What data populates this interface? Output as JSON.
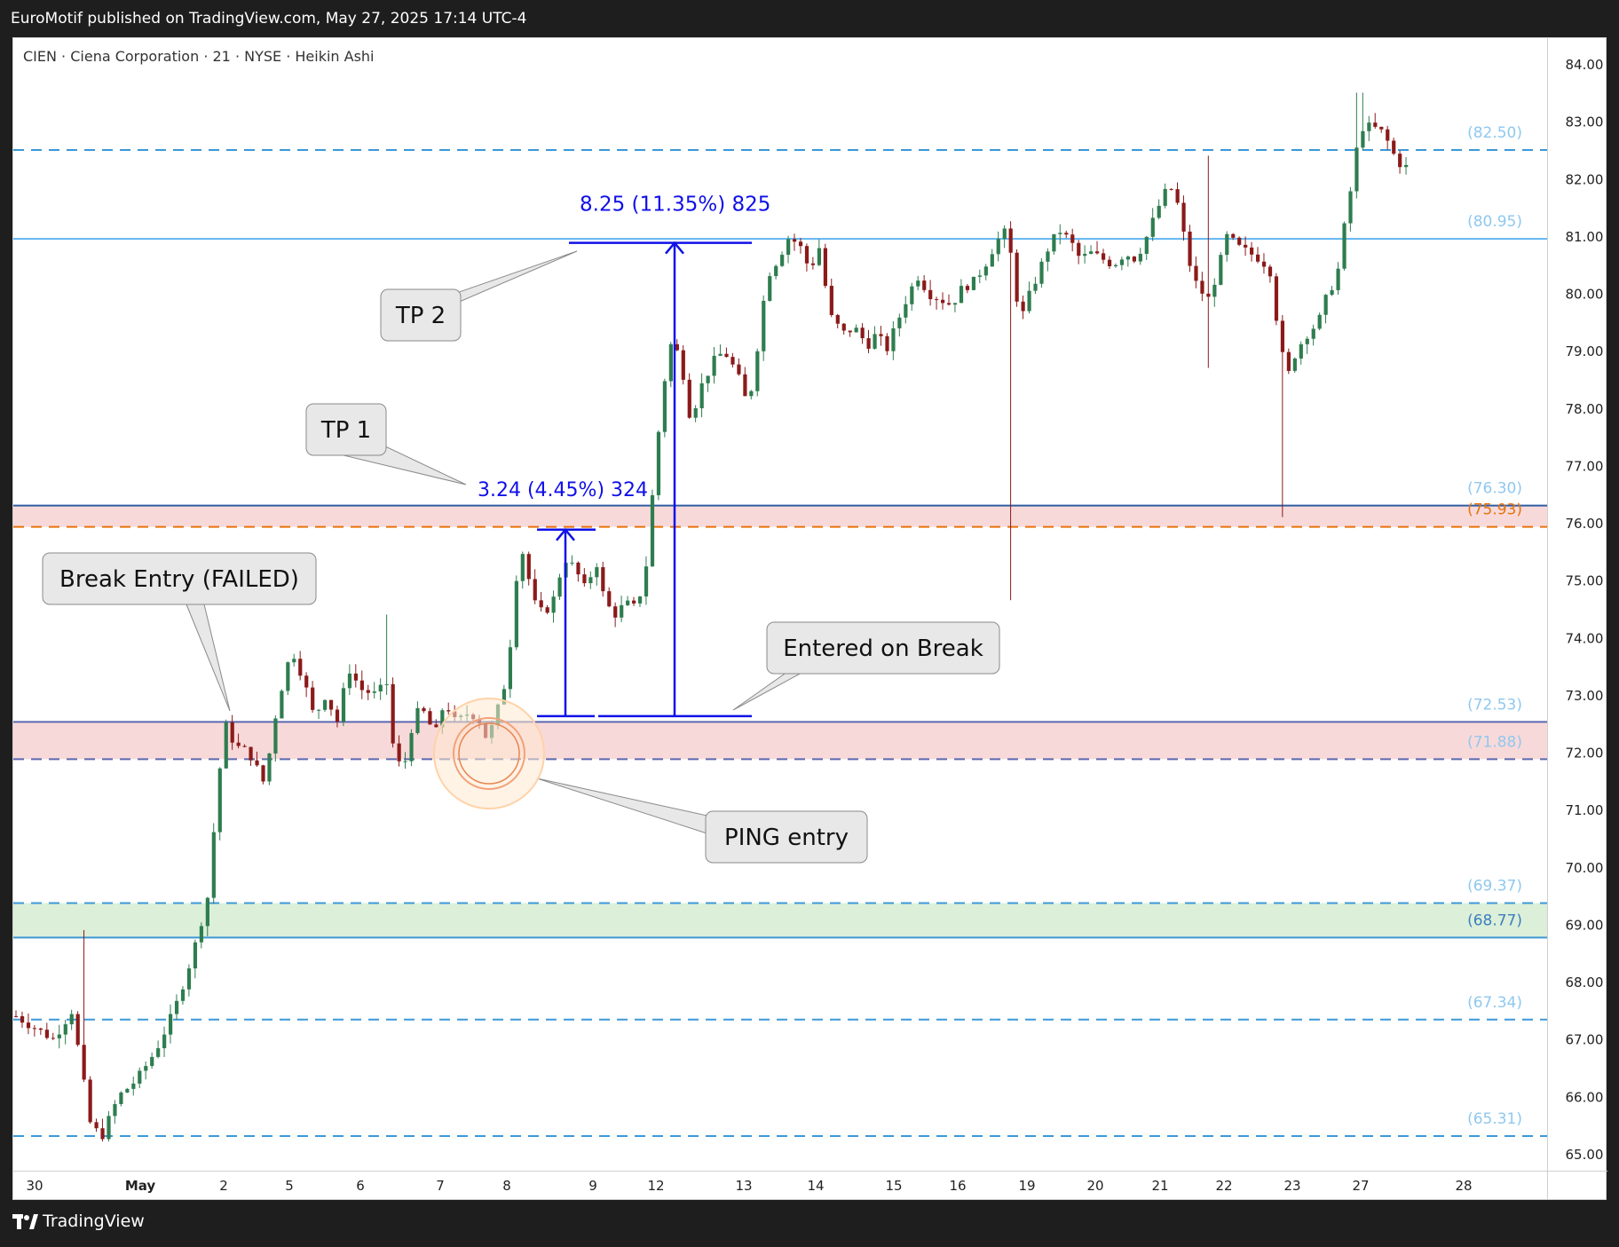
{
  "publish_line": "EuroMotif published on TradingView.com, May 27, 2025 17:14 UTC-4",
  "brand": "TradingView",
  "chart_data": {
    "type": "candlestick",
    "title": "CIEN · Ciena Corporation · 21 · NYSE · Heikin Ashi",
    "y_range": [
      64.9,
      84.55
    ],
    "y_ticks": [
      "84.00",
      "83.00",
      "82.00",
      "81.00",
      "80.00",
      "79.00",
      "78.00",
      "77.00",
      "76.00",
      "75.00",
      "74.00",
      "73.00",
      "72.00",
      "71.00",
      "70.00",
      "69.00",
      "68.00",
      "67.00",
      "66.00",
      "65.00"
    ],
    "x_ticks": [
      "30",
      "May",
      "2",
      "5",
      "6",
      "7",
      "8",
      "9",
      "12",
      "13",
      "14",
      "15",
      "16",
      "19",
      "20",
      "21",
      "22",
      "23",
      "27",
      "28"
    ],
    "series_path": [
      [
        0,
        67.4
      ],
      [
        2,
        67.0
      ],
      [
        3,
        67.5
      ],
      [
        4,
        65.5
      ],
      [
        4.6,
        65.3
      ],
      [
        5.5,
        66.0
      ],
      [
        6.5,
        66.3
      ],
      [
        7.5,
        66.8
      ],
      [
        8.5,
        67.5
      ],
      [
        9.5,
        68.5
      ],
      [
        10.3,
        69.5
      ],
      [
        10.8,
        71.3
      ],
      [
        11.2,
        72.5
      ],
      [
        11.8,
        72.1
      ],
      [
        12.5,
        72.0
      ],
      [
        13.4,
        71.4
      ],
      [
        13.7,
        72.3
      ],
      [
        14.3,
        73.2
      ],
      [
        14.8,
        73.8
      ],
      [
        15.4,
        73.3
      ],
      [
        16,
        72.6
      ],
      [
        16.6,
        73.0
      ],
      [
        17.3,
        72.5
      ],
      [
        17.8,
        73.5
      ],
      [
        18.5,
        73.1
      ],
      [
        19.3,
        73.0
      ],
      [
        19.9,
        73.2
      ],
      [
        20.3,
        71.9
      ],
      [
        20.8,
        71.7
      ],
      [
        21.2,
        72.4
      ],
      [
        21.7,
        72.8
      ],
      [
        22.5,
        72.3
      ],
      [
        23.0,
        72.9
      ],
      [
        23.6,
        72.5
      ],
      [
        24.3,
        72.7
      ],
      [
        24.8,
        72.6
      ],
      [
        25.3,
        72.2
      ],
      [
        25.9,
        72.8
      ],
      [
        26.4,
        73.4
      ],
      [
        26.8,
        75.0
      ],
      [
        27.2,
        75.5
      ],
      [
        27.8,
        74.6
      ],
      [
        28.3,
        74.4
      ],
      [
        28.9,
        74.7
      ],
      [
        29.4,
        75.4
      ],
      [
        30.0,
        75.2
      ],
      [
        30.6,
        74.8
      ],
      [
        31.1,
        75.4
      ],
      [
        31.6,
        74.6
      ],
      [
        32.2,
        74.4
      ],
      [
        32.7,
        74.6
      ],
      [
        33.3,
        74.5
      ],
      [
        33.8,
        75.2
      ],
      [
        34.3,
        77.0
      ],
      [
        34.7,
        78.3
      ],
      [
        35.2,
        79.2
      ],
      [
        35.7,
        78.8
      ],
      [
        36.2,
        77.8
      ],
      [
        36.8,
        78.4
      ],
      [
        37.4,
        78.8
      ],
      [
        38.0,
        79.0
      ],
      [
        38.7,
        78.6
      ],
      [
        39.3,
        78.0
      ],
      [
        39.8,
        79.1
      ],
      [
        40.3,
        80.3
      ],
      [
        40.9,
        80.6
      ],
      [
        41.5,
        81.0
      ],
      [
        42.1,
        80.8
      ],
      [
        42.6,
        80.4
      ],
      [
        43.1,
        80.8
      ],
      [
        43.7,
        79.6
      ],
      [
        44.4,
        79.3
      ],
      [
        45.0,
        79.4
      ],
      [
        45.7,
        79.1
      ],
      [
        46.2,
        79.3
      ],
      [
        46.7,
        79.0
      ],
      [
        47.3,
        79.5
      ],
      [
        47.9,
        80.0
      ],
      [
        48.4,
        80.3
      ],
      [
        49.0,
        80.0
      ],
      [
        49.6,
        79.9
      ],
      [
        50.2,
        79.8
      ],
      [
        50.8,
        80.1
      ],
      [
        51.4,
        80.2
      ],
      [
        52.0,
        80.5
      ],
      [
        52.6,
        80.9
      ],
      [
        53.2,
        81.1
      ],
      [
        53.5,
        80.4
      ],
      [
        53.9,
        79.5
      ],
      [
        54.3,
        79.9
      ],
      [
        54.8,
        80.3
      ],
      [
        55.4,
        80.8
      ],
      [
        56.0,
        81.1
      ],
      [
        56.6,
        80.9
      ],
      [
        57.1,
        80.6
      ],
      [
        57.7,
        80.7
      ],
      [
        58.3,
        80.6
      ],
      [
        58.9,
        80.5
      ],
      [
        59.5,
        80.7
      ],
      [
        60.1,
        80.6
      ],
      [
        60.7,
        81.0
      ],
      [
        61.3,
        81.5
      ],
      [
        61.9,
        81.9
      ],
      [
        62.4,
        81.5
      ],
      [
        62.9,
        80.6
      ],
      [
        63.4,
        80.1
      ],
      [
        64.0,
        79.9
      ],
      [
        64.5,
        80.4
      ],
      [
        65.0,
        81.0
      ],
      [
        65.6,
        80.8
      ],
      [
        66.2,
        80.7
      ],
      [
        66.8,
        80.6
      ],
      [
        67.3,
        80.4
      ],
      [
        67.8,
        79.2
      ],
      [
        68.2,
        78.5
      ],
      [
        68.7,
        79.0
      ],
      [
        69.3,
        79.3
      ],
      [
        69.9,
        79.5
      ],
      [
        70.4,
        80.0
      ],
      [
        70.9,
        80.3
      ],
      [
        71.4,
        81.4
      ],
      [
        71.8,
        82.1
      ],
      [
        72.1,
        82.9
      ],
      [
        72.6,
        82.9
      ],
      [
        73.2,
        82.85
      ],
      [
        73.7,
        82.6
      ],
      [
        74.1,
        82.3
      ],
      [
        74.6,
        82.2
      ]
    ],
    "candle_count": 226,
    "up_color": "#2e7d4f",
    "down_color": "#8b1a1a",
    "horizontal_levels": [
      {
        "value": 82.5,
        "label": "(82.50)",
        "color": "#3c98d8",
        "style": "dashed"
      },
      {
        "value": 80.95,
        "label": "(80.95)",
        "color": "#61b6f0",
        "style": "solid"
      },
      {
        "value": 76.3,
        "label": "(76.30)",
        "color": "#2f5ea5",
        "style": "solid"
      },
      {
        "value": 75.93,
        "label": "(75.93)",
        "color": "#e8730c",
        "style": "dashed"
      },
      {
        "value": 72.53,
        "label": "(72.53)",
        "color": "#5b68b0",
        "style": "solid"
      },
      {
        "value": 71.88,
        "label": "(71.88)",
        "color": "#5b68b0",
        "style": "dashed"
      },
      {
        "value": 69.37,
        "label": "(69.37)",
        "color": "#3c98d8",
        "style": "dashed"
      },
      {
        "value": 68.77,
        "label": "(68.77)",
        "color": "#3c98d8",
        "style": "solid"
      },
      {
        "value": 67.34,
        "label": "(67.34)",
        "color": "#3c98d8",
        "style": "dashed"
      },
      {
        "value": 65.31,
        "label": "(65.31)",
        "color": "#3c98d8",
        "style": "dashed"
      }
    ],
    "zones": [
      {
        "from": 75.93,
        "to": 76.3,
        "color": "#f8d9d9"
      },
      {
        "from": 71.88,
        "to": 72.53,
        "color": "#f8d9d9"
      },
      {
        "from": 68.77,
        "to": 69.37,
        "color": "#dcefd9"
      }
    ],
    "measures": [
      {
        "from": 72.63,
        "to": 75.88,
        "label": "3.24 (4.45%) 324"
      },
      {
        "from": 72.63,
        "to": 80.88,
        "label": "8.25 (11.35%) 825"
      }
    ],
    "annotations": [
      {
        "text": "TP 2"
      },
      {
        "text": "TP 1"
      },
      {
        "text": "Break Entry (FAILED)"
      },
      {
        "text": "Entered on Break"
      },
      {
        "text": "PING entry"
      }
    ]
  }
}
